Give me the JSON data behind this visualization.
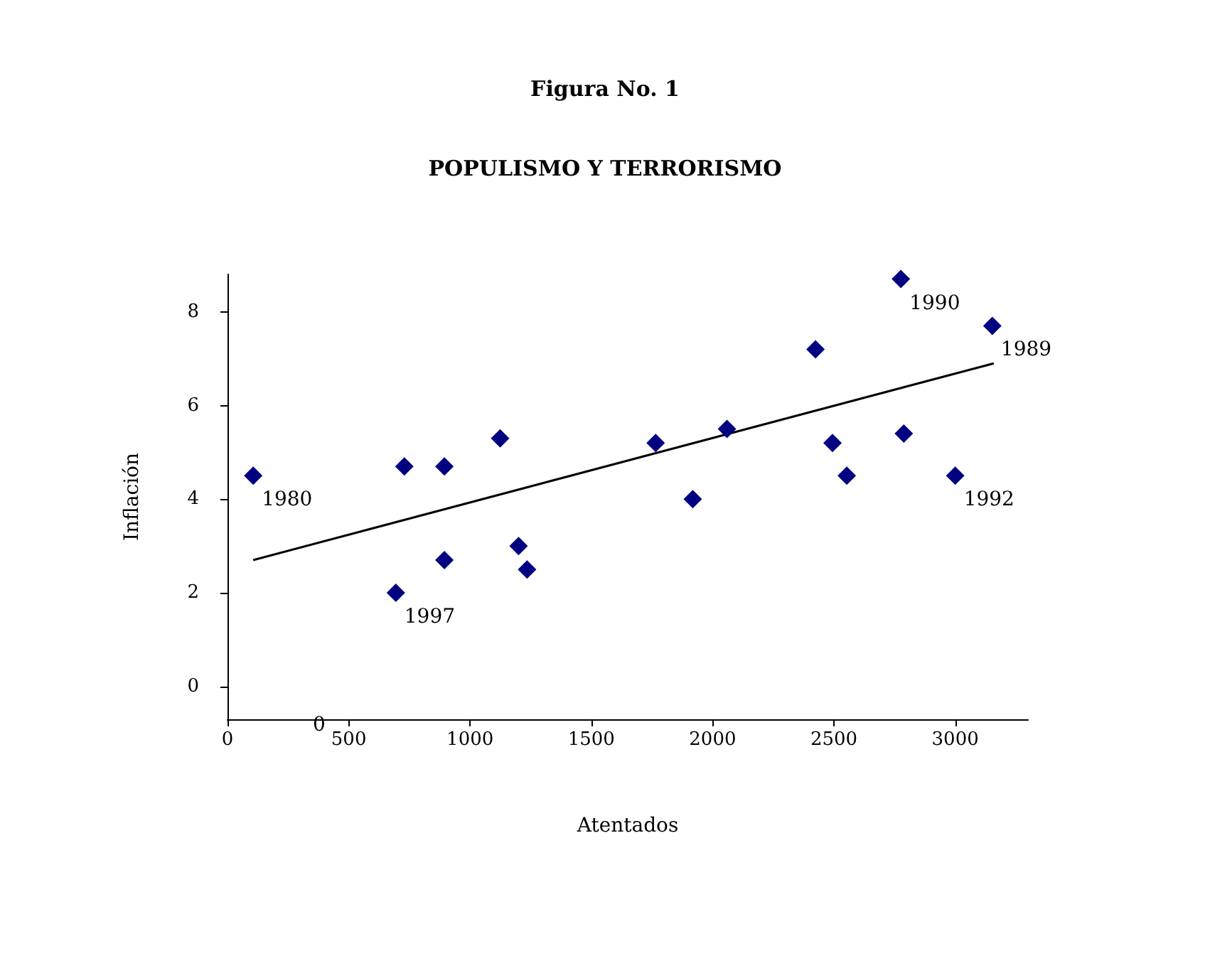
{
  "chart_data": {
    "type": "scatter",
    "title": "Figura No. 1",
    "subtitle": "POPULISMO Y TERRORISMO",
    "xlabel": "Atentados",
    "ylabel": "Inflación",
    "x": [
      106,
      729,
      894,
      1124,
      694,
      894,
      1200,
      1235,
      1765,
      1918,
      2059,
      2424,
      2494,
      2553,
      2776,
      2788,
      3000,
      3153
    ],
    "series": [
      {
        "color": "#000080",
        "marker": "diamond",
        "values": [
          4.5,
          4.7,
          4.7,
          5.3,
          2.0,
          2.7,
          3.0,
          2.5,
          5.2,
          4.0,
          5.5,
          7.2,
          5.2,
          4.5,
          8.7,
          5.4,
          4.5,
          7.7
        ]
      },
      {
        "type": "line",
        "marker": "none",
        "color": "#000000",
        "x": [
          106,
          3159
        ],
        "values": [
          2.7,
          6.9
        ]
      }
    ],
    "xlim": [
      0,
      3300
    ],
    "xticks": [
      0,
      500,
      1000,
      1500,
      2000,
      2500,
      3000
    ],
    "ylim": [
      -0.7,
      8.8
    ],
    "yticks": [
      0,
      2,
      4,
      6,
      8
    ],
    "grid": false,
    "annotations": [
      {
        "text": "1980",
        "x": 106,
        "y": 4.5
      },
      {
        "text": "1997",
        "x": 694,
        "y": 2.0
      },
      {
        "text": "1990",
        "x": 2776,
        "y": 8.7
      },
      {
        "text": "1989",
        "x": 3153,
        "y": 7.7
      },
      {
        "text": "1992",
        "x": 3000,
        "y": 4.5
      },
      "0"
    ]
  }
}
